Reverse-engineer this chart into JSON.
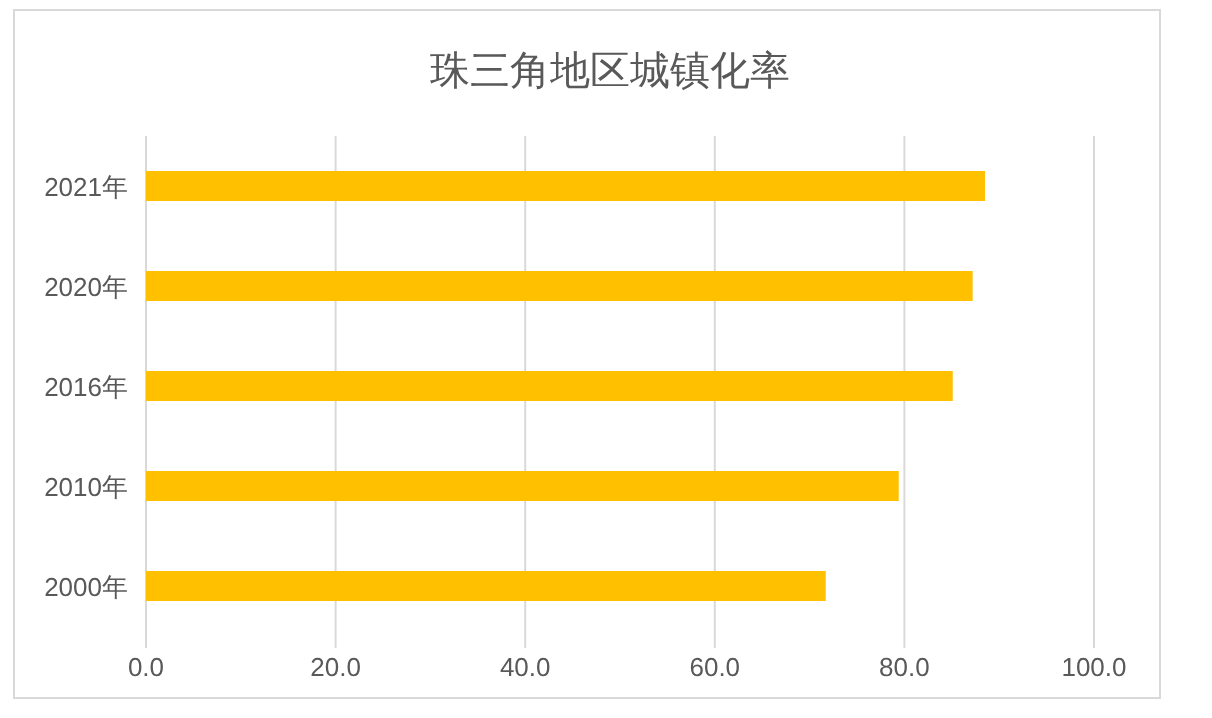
{
  "chart_data": {
    "type": "bar",
    "orientation": "horizontal",
    "title": "珠三角地区城镇化率",
    "categories": [
      "2021年",
      "2020年",
      "2016年",
      "2010年",
      "2000年"
    ],
    "values": [
      88.5,
      87.2,
      85.1,
      79.4,
      71.7
    ],
    "color": "#ffc000",
    "xlim": [
      0,
      100
    ],
    "xticks": [
      {
        "value": 0,
        "label": "0.0"
      },
      {
        "value": 20,
        "label": "20.0"
      },
      {
        "value": 40,
        "label": "40.0"
      },
      {
        "value": 60,
        "label": "60.0"
      },
      {
        "value": 80,
        "label": "80.0"
      },
      {
        "value": 100,
        "label": "100.0"
      }
    ],
    "grid": "x"
  }
}
